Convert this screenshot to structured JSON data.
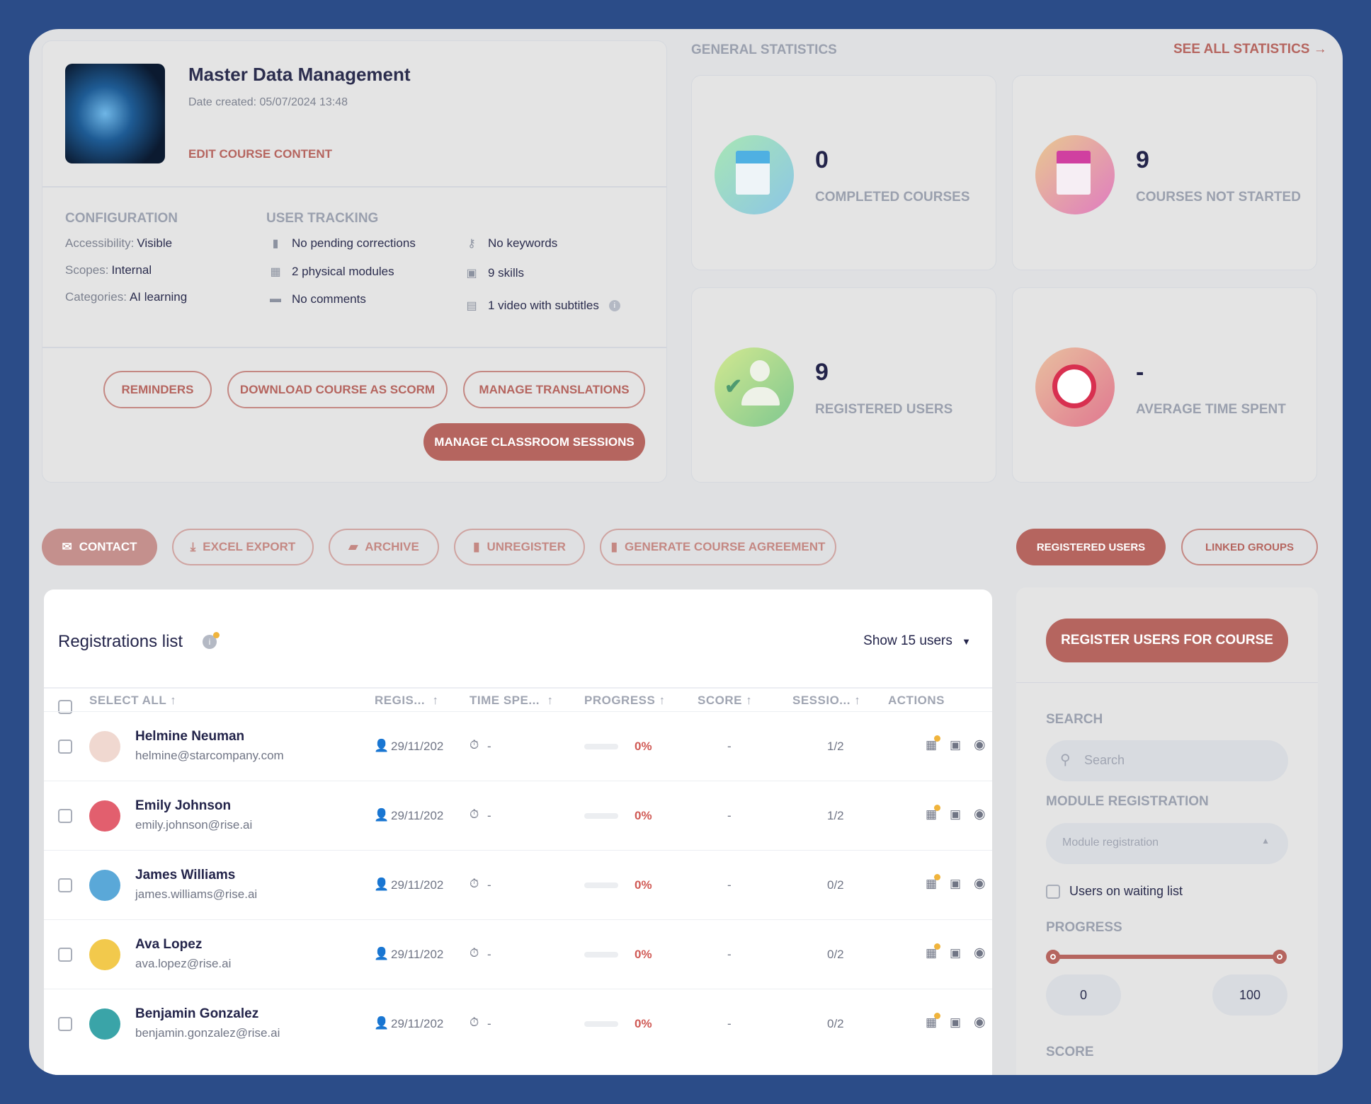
{
  "course": {
    "title": "Master Data Management",
    "date_created": "Date created: 05/07/2024 13:48",
    "edit_link": "EDIT COURSE CONTENT"
  },
  "configuration": {
    "heading": "CONFIGURATION",
    "items": [
      {
        "key": "Accessibility:",
        "value": "Visible"
      },
      {
        "key": "Scopes:",
        "value": "Internal"
      },
      {
        "key": "Categories:",
        "value": "AI learning"
      }
    ]
  },
  "tracking": {
    "heading": "USER TRACKING",
    "items": [
      {
        "icon": "file-icon",
        "text": "No pending corrections"
      },
      {
        "icon": "calendar-icon",
        "text": "2 physical modules"
      },
      {
        "icon": "comment-icon",
        "text": "No comments"
      },
      {
        "icon": "key-icon",
        "text": "No keywords"
      },
      {
        "icon": "skills-icon",
        "text": "9 skills"
      },
      {
        "icon": "video-icon",
        "text": "1 video with subtitles"
      }
    ]
  },
  "course_buttons": {
    "reminders": "REMINDERS",
    "scorm": "DOWNLOAD COURSE AS SCORM",
    "translations": "MANAGE TRANSLATIONS",
    "classroom": "MANAGE CLASSROOM SESSIONS"
  },
  "stats": {
    "heading": "GENERAL STATISTICS",
    "see_all": "SEE ALL STATISTICS →",
    "cards": [
      {
        "value": "0",
        "label": "COMPLETED COURSES"
      },
      {
        "value": "9",
        "label": "COURSES NOT STARTED"
      },
      {
        "value": "9",
        "label": "REGISTERED USERS"
      },
      {
        "value": "-",
        "label": "AVERAGE TIME SPENT"
      }
    ]
  },
  "actions": {
    "contact": "CONTACT",
    "excel": "EXCEL EXPORT",
    "archive": "ARCHIVE",
    "unregister": "UNREGISTER",
    "agreement": "GENERATE COURSE AGREEMENT"
  },
  "tabs": {
    "registered": "REGISTERED USERS",
    "linked": "LINKED GROUPS"
  },
  "table": {
    "title": "Registrations list",
    "show": "Show 15 users",
    "columns": [
      "SELECT ALL",
      "REGIS...",
      "TIME SPE...",
      "PROGRESS",
      "SCORE",
      "SESSIO...",
      "ACTIONS"
    ],
    "rows": [
      {
        "name": "Helmine Neuman",
        "email": "helmine@starcompany.com",
        "date": "29/11/202",
        "time": "-",
        "progress": "0%",
        "score": "-",
        "sessions": "1/2"
      },
      {
        "name": "Emily Johnson",
        "email": "emily.johnson@rise.ai",
        "date": "29/11/202",
        "time": "-",
        "progress": "0%",
        "score": "-",
        "sessions": "1/2"
      },
      {
        "name": "James Williams",
        "email": "james.williams@rise.ai",
        "date": "29/11/202",
        "time": "-",
        "progress": "0%",
        "score": "-",
        "sessions": "0/2"
      },
      {
        "name": "Ava Lopez",
        "email": "ava.lopez@rise.ai",
        "date": "29/11/202",
        "time": "-",
        "progress": "0%",
        "score": "-",
        "sessions": "0/2"
      },
      {
        "name": "Benjamin Gonzalez",
        "email": "benjamin.gonzalez@rise.ai",
        "date": "29/11/202",
        "time": "-",
        "progress": "0%",
        "score": "-",
        "sessions": "0/2"
      }
    ]
  },
  "filters": {
    "register_button": "REGISTER USERS FOR COURSE",
    "search_label": "SEARCH",
    "search_placeholder": "Search",
    "module_label": "MODULE REGISTRATION",
    "module_placeholder": "Module registration",
    "waiting_list": "Users on waiting list",
    "progress_label": "PROGRESS",
    "progress_min": "0",
    "progress_max": "100",
    "score_label": "SCORE"
  },
  "colors": {
    "accent": "#b5655f",
    "background": "#2b4c88",
    "panel": "#dfe0e2"
  }
}
